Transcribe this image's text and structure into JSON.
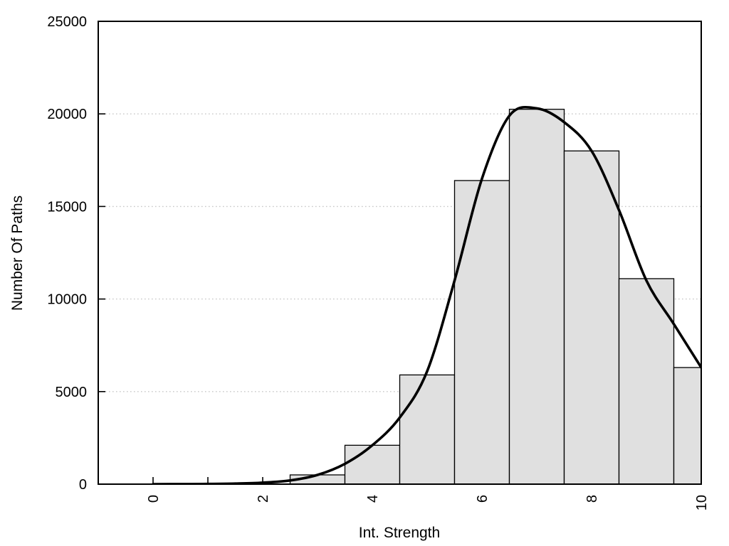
{
  "chart_data": {
    "type": "bar",
    "subtype": "histogram-with-density-curve",
    "title": "",
    "xlabel": "Int. Strength",
    "ylabel": "Number Of Paths",
    "xlim": [
      -1,
      10
    ],
    "ylim": [
      0,
      25000
    ],
    "grid": "horizontal dotted lines at y major ticks",
    "legend": "none",
    "bar_width": 1,
    "bar_centers": [
      0,
      1,
      2,
      3,
      4,
      5,
      6,
      7,
      8,
      9,
      10
    ],
    "bar_values": [
      0,
      0,
      0,
      500,
      2100,
      5900,
      16400,
      20250,
      18000,
      11100,
      6300
    ],
    "curve": {
      "name": "fitted-density-curve",
      "x": [
        0,
        0.5,
        1,
        1.5,
        2,
        2.5,
        3,
        3.5,
        4,
        4.5,
        5,
        5.5,
        6,
        6.5,
        7,
        7.5,
        8,
        8.5,
        9,
        9.5,
        10
      ],
      "y": [
        0,
        3,
        10,
        30,
        80,
        200,
        500,
        1100,
        2100,
        3600,
        6100,
        11000,
        16500,
        19900,
        20300,
        19550,
        18000,
        14800,
        11000,
        8650,
        6300
      ]
    },
    "x_minor_ticks": [
      0,
      1,
      2,
      3,
      4,
      5,
      6,
      7,
      8,
      9,
      10
    ],
    "x_labeled_ticks": [
      0,
      2,
      4,
      6,
      8,
      10
    ],
    "x_tick_labels": [
      "0",
      "2",
      "4",
      "6",
      "8",
      "10"
    ],
    "x_tick_label_rotation": -90,
    "y_ticks": [
      0,
      5000,
      10000,
      15000,
      20000,
      25000
    ],
    "y_tick_labels": [
      "0",
      "5000",
      "10000",
      "15000",
      "20000",
      "25000"
    ],
    "colors": {
      "background": "#ffffff",
      "bar_fill": "#e0e0e0",
      "bar_stroke": "#000000",
      "curve": "#000000",
      "grid": "#c8c8c8",
      "frame": "#000000",
      "text": "#000000"
    }
  }
}
